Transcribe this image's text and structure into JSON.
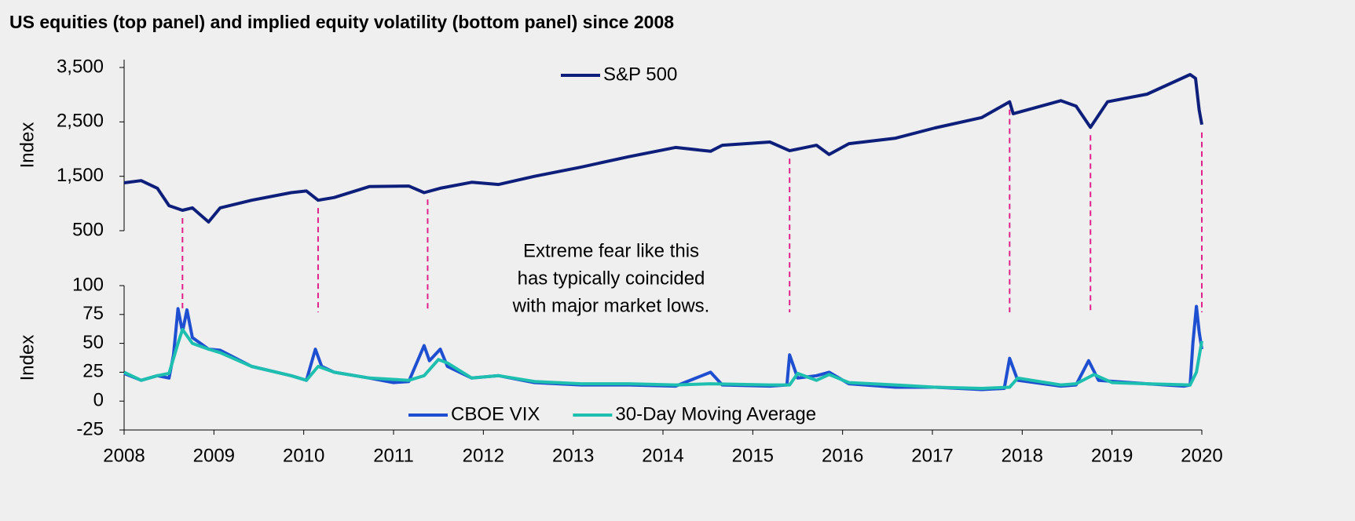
{
  "chart_data": [
    {
      "type": "line",
      "title": "US equities (top panel) and implied equity volatility (bottom panel) since 2008",
      "y_label": "Index",
      "xlim": [
        2008,
        2020
      ],
      "ylim": [
        500,
        3500
      ],
      "yticks": [
        500,
        {
          "value": 1500,
          "label": "1,500"
        },
        {
          "value": 2500,
          "label": "2,500"
        },
        {
          "value": 3500,
          "label": "3,500"
        }
      ],
      "legend": "top-center",
      "series": [
        {
          "name": "S&P 500",
          "color": "#0d1f7a",
          "x": [
            2008.0,
            2008.19,
            2008.37,
            2008.5,
            2008.65,
            2008.76,
            2008.94,
            2009.07,
            2009.42,
            2009.86,
            2010.03,
            2010.16,
            2010.34,
            2010.73,
            2011.17,
            2011.34,
            2011.52,
            2011.87,
            2012.17,
            2012.57,
            2013.09,
            2013.62,
            2014.14,
            2014.53,
            2014.66,
            2015.19,
            2015.41,
            2015.71,
            2015.85,
            2016.07,
            2016.59,
            2017.03,
            2017.55,
            2017.86,
            2017.9,
            2018.43,
            2018.6,
            2018.76,
            2018.95,
            2019.39,
            2019.87,
            2019.93,
            2019.97,
            2020.0
          ],
          "values": [
            1380,
            1420,
            1280,
            960,
            875,
            920,
            660,
            920,
            1060,
            1200,
            1230,
            1060,
            1110,
            1310,
            1320,
            1200,
            1280,
            1390,
            1350,
            1500,
            1670,
            1860,
            2030,
            1960,
            2070,
            2130,
            1970,
            2070,
            1900,
            2100,
            2200,
            2390,
            2580,
            2870,
            2650,
            2890,
            2790,
            2400,
            2870,
            3010,
            3370,
            3300,
            2720,
            2450
          ]
        }
      ]
    },
    {
      "type": "line",
      "y_label": "Index",
      "xlim": [
        2008,
        2020
      ],
      "ylim": [
        -25,
        100
      ],
      "yticks": [
        -25,
        0,
        25,
        50,
        75,
        100
      ],
      "xticks": [
        2008,
        2009,
        2010,
        2011,
        2012,
        2013,
        2014,
        2015,
        2016,
        2017,
        2018,
        2019,
        2020
      ],
      "legend": "bottom-center",
      "annotation": [
        "Extreme fear like this",
        "has typically coincided",
        "with major market lows."
      ],
      "event_lines": [
        2008.65,
        2010.16,
        2011.38,
        2015.41,
        2017.86,
        2018.76,
        2020.0
      ],
      "event_color": "#e0218a",
      "series": [
        {
          "name": "CBOE VIX",
          "color": "#1f4fd1",
          "x": [
            2008.0,
            2008.19,
            2008.37,
            2008.5,
            2008.55,
            2008.6,
            2008.65,
            2008.7,
            2008.76,
            2008.94,
            2009.07,
            2009.42,
            2009.86,
            2010.03,
            2010.13,
            2010.2,
            2010.34,
            2010.73,
            2011.0,
            2011.17,
            2011.34,
            2011.4,
            2011.52,
            2011.6,
            2011.87,
            2012.17,
            2012.57,
            2013.09,
            2013.62,
            2014.14,
            2014.53,
            2014.66,
            2015.19,
            2015.38,
            2015.41,
            2015.5,
            2015.71,
            2015.85,
            2016.07,
            2016.59,
            2017.03,
            2017.55,
            2017.8,
            2017.86,
            2017.95,
            2018.43,
            2018.6,
            2018.74,
            2018.85,
            2019.39,
            2019.8,
            2019.87,
            2019.9,
            2019.94,
            2019.97,
            2020.0
          ],
          "values": [
            24,
            18,
            22,
            20,
            40,
            80,
            60,
            79,
            55,
            45,
            44,
            30,
            22,
            18,
            45,
            30,
            25,
            20,
            16,
            17,
            48,
            35,
            45,
            30,
            20,
            22,
            16,
            14,
            14,
            13,
            25,
            14,
            13,
            14,
            40,
            20,
            22,
            25,
            15,
            12,
            12,
            10,
            11,
            37,
            18,
            13,
            14,
            35,
            18,
            15,
            13,
            14,
            50,
            82,
            60,
            45
          ]
        },
        {
          "name": "30-Day Moving Average",
          "color": "#1fbfb0",
          "x": [
            2008.0,
            2008.19,
            2008.37,
            2008.5,
            2008.6,
            2008.65,
            2008.76,
            2008.94,
            2009.07,
            2009.42,
            2009.86,
            2010.03,
            2010.16,
            2010.34,
            2010.73,
            2011.17,
            2011.34,
            2011.5,
            2011.6,
            2011.87,
            2012.17,
            2012.57,
            2013.09,
            2013.62,
            2014.14,
            2014.53,
            2015.19,
            2015.41,
            2015.5,
            2015.71,
            2015.85,
            2016.07,
            2016.59,
            2017.03,
            2017.55,
            2017.86,
            2017.95,
            2018.43,
            2018.6,
            2018.8,
            2019.0,
            2019.39,
            2019.87,
            2019.94,
            2020.0
          ],
          "values": [
            25,
            18,
            22,
            24,
            50,
            62,
            50,
            45,
            42,
            30,
            22,
            18,
            30,
            25,
            20,
            18,
            22,
            36,
            33,
            20,
            22,
            17,
            15,
            15,
            14,
            15,
            14,
            14,
            24,
            18,
            23,
            16,
            14,
            12,
            11,
            12,
            20,
            14,
            15,
            23,
            16,
            15,
            14,
            25,
            52
          ]
        }
      ]
    }
  ]
}
